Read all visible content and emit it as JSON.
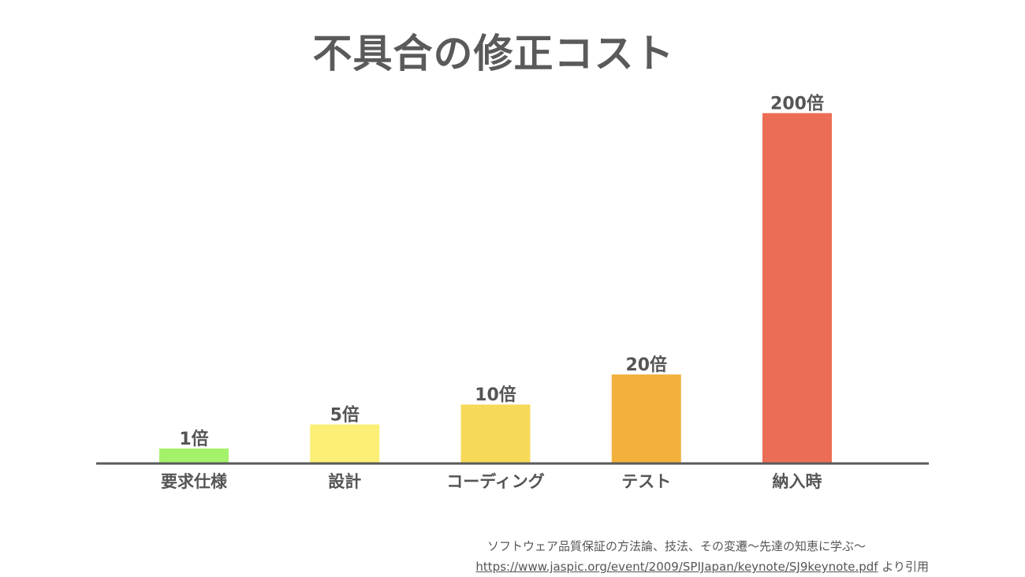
{
  "chart_data": {
    "type": "bar",
    "title": "不具合の修正コスト",
    "categories": [
      "要求仕様",
      "設計",
      "コーディング",
      "テスト",
      "納入時"
    ],
    "values": [
      1,
      5,
      10,
      20,
      200
    ],
    "data_labels": [
      "1倍",
      "5倍",
      "10倍",
      "20倍",
      "200倍"
    ],
    "colors": [
      "#a4f26a",
      "#fbef75",
      "#f7d95a",
      "#f1b13c",
      "#ec6d55"
    ],
    "xlabel": "",
    "ylabel": "",
    "grid": false,
    "legend": "none"
  },
  "source": {
    "line1": "ソフトウェア品質保証の方法論、技法、その変遷〜先達の知恵に学ぶ〜",
    "link": "https://www.jaspic.org/event/2009/SPIJapan/keynote/SJ9keynote.pdf",
    "suffix": " より引用"
  }
}
